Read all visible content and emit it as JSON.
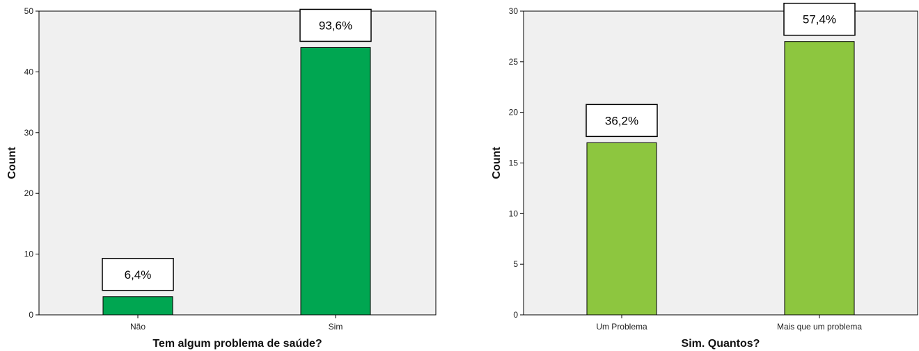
{
  "chart_data": [
    {
      "type": "bar",
      "categories": [
        "Não",
        "Sim"
      ],
      "values": [
        3,
        44
      ],
      "data_labels": [
        "6,4%",
        "93,6%"
      ],
      "xlabel": "Tem algum problema de saúde?",
      "ylabel": "Count",
      "ylim": [
        0,
        50
      ],
      "yticks": [
        0,
        10,
        20,
        30,
        40,
        50
      ],
      "bar_color": "#00a651",
      "plot_background": "#f0f0f0",
      "grid": false
    },
    {
      "type": "bar",
      "categories": [
        "Um Problema",
        "Mais que um problema"
      ],
      "values": [
        17,
        27
      ],
      "data_labels": [
        "36,2%",
        "57,4%"
      ],
      "xlabel": "Sim. Quantos?",
      "ylabel": "Count",
      "ylim": [
        0,
        30
      ],
      "yticks": [
        0,
        5,
        10,
        15,
        20,
        25,
        30
      ],
      "bar_color": "#8dc63f",
      "plot_background": "#f0f0f0",
      "grid": false
    }
  ]
}
